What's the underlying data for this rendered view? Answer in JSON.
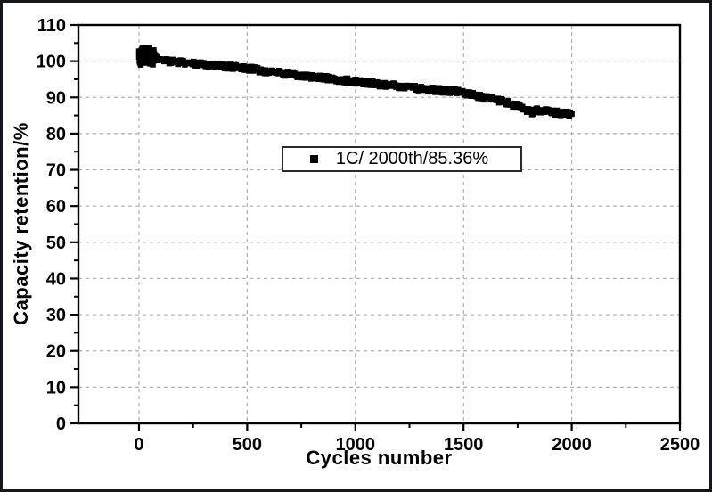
{
  "figure": {
    "background": "#ffffff",
    "border_color": "#14161d"
  },
  "colors": {
    "axis": "#000000",
    "text": "#000000",
    "grid": "#b0b0b0",
    "marker": "#000000",
    "legend_border": "#2b2b2b",
    "legend_background": "#ffffff"
  },
  "legend": {
    "marker_icon": "filled-square",
    "label": "1C/ 2000th/85.36%"
  },
  "chart_data": {
    "type": "scatter",
    "title": "",
    "xlabel": "Cycles number",
    "ylabel": "Capacity retention/%",
    "xlim": [
      -280,
      2500
    ],
    "ylim": [
      0,
      110
    ],
    "x_major_ticks": [
      0,
      500,
      1000,
      1500,
      2000,
      2500
    ],
    "x_minor_ticks": [
      250,
      750,
      1250,
      1750,
      2250
    ],
    "x_gridlines": [
      0,
      500,
      1000,
      1500,
      2000
    ],
    "y_major_ticks": [
      0,
      10,
      20,
      30,
      40,
      50,
      60,
      70,
      80,
      90,
      100,
      110
    ],
    "y_minor_ticks": [
      5,
      15,
      25,
      35,
      45,
      55,
      65,
      75,
      85,
      95,
      105
    ],
    "y_gridlines": [
      10,
      20,
      30,
      40,
      50,
      60,
      70,
      80,
      90,
      100
    ],
    "grid": "dashed-major-only",
    "legend_position": "upper-middle",
    "series": [
      {
        "name": "1C/ 2000th/85.36%",
        "marker": "square",
        "color": "#000000",
        "x": [
          0,
          25,
          50,
          75,
          100,
          150,
          200,
          250,
          300,
          350,
          400,
          450,
          500,
          550,
          580,
          600,
          650,
          700,
          750,
          800,
          850,
          900,
          950,
          1000,
          1050,
          1100,
          1150,
          1200,
          1250,
          1300,
          1350,
          1400,
          1450,
          1500,
          1550,
          1600,
          1650,
          1700,
          1750,
          1780,
          1800,
          1815,
          1830,
          1860,
          1900,
          1950,
          2000
        ],
        "y": [
          100.8,
          101.9,
          101.6,
          101.1,
          100.4,
          99.9,
          99.6,
          99.4,
          99.1,
          98.9,
          98.6,
          98.3,
          98.0,
          97.6,
          97.2,
          97.1,
          96.8,
          96.4,
          96.1,
          95.7,
          95.4,
          95.1,
          94.7,
          94.4,
          94.1,
          93.7,
          93.4,
          93.1,
          92.7,
          92.4,
          92.1,
          91.9,
          91.8,
          91.3,
          90.6,
          90.0,
          89.4,
          88.6,
          87.6,
          87.0,
          86.2,
          85.8,
          86.4,
          86.3,
          86.0,
          85.6,
          85.36
        ],
        "final_point": {
          "cycle": 2000,
          "retention_pct": 85.36
        },
        "scatter_halfwidth": 0.65,
        "initial_cluster": {
          "until_cycle": 70,
          "halfwidth": 2.4
        }
      }
    ]
  }
}
